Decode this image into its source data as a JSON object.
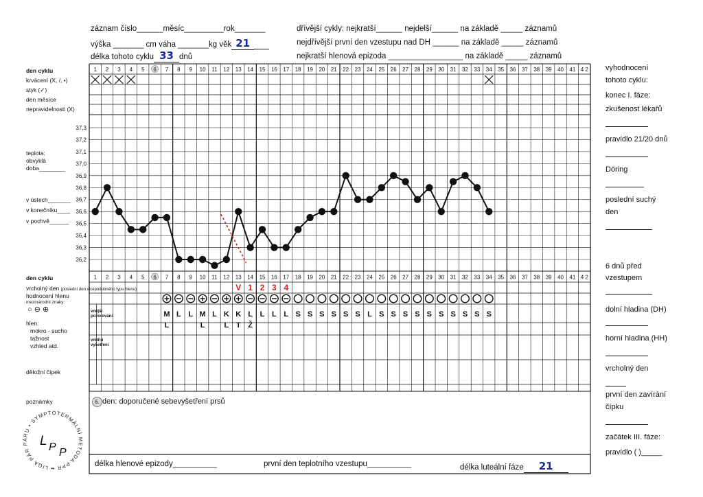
{
  "header": {
    "row1_left": "záznam číslo______měsíc_________rok_______",
    "row2_left_a": "výška _______ cm   váha _______kg   věk",
    "age": "21",
    "row3_left_a": "délka tohoto cyklu",
    "cycle_length": "33",
    "row3_left_b": "dnů",
    "row1_right": "dřívější cykly: nejkratší______ nejdelší______ na základě _____ záznamů",
    "row2_right": "nejdřívější první den vzestupu nad DH ______ na základě _____ záznamů",
    "row3_right": "nejkratší hlenová epizoda _________________ na základě _____ záznamů"
  },
  "left_labels": {
    "den_cyklu": "den cyklu",
    "krvaceni": "krvácení (X, /, •)",
    "styk": "styk (✓)",
    "den_mesice": "den měsíce",
    "nepravidelnosti": "nepravidelnosti (X)",
    "teplota": "teplota:",
    "obvykla": "obvyklá",
    "doba": "doba________",
    "v_ustech": "v ústech_______",
    "v_konecniku": "v konečníku____",
    "v_pochve": "v pochvě______",
    "den_cyklu2": "den cyklu",
    "vrcholny_den": "vrcholný den",
    "vrcholny_den_note": "(poslední den vícepodobného typu hlenu)",
    "hodnoceni": "hodnocení hlenu",
    "mezinarodni": "mezinárodní znaky:",
    "znaky": "○ ⊖ ⊕",
    "hlen": "hlen:",
    "mokro": "mokro - sucho",
    "taznost": "tažnost",
    "vzhled": "vzhled atd.",
    "delozni": "děložní čípek",
    "poznamky": "poznámky",
    "vnejsi": "vnější pozorování",
    "vnitrni": "vnitřní vyšetření"
  },
  "right_labels": {
    "vyhodnoceni": "vyhodnocení",
    "tohoto": "tohoto cyklu:",
    "konec": "konec I. fáze:",
    "zkusenost": "zkušenost lékařů",
    "pravidlo": "pravidlo 21/20 dnů",
    "doring": "Döring",
    "posledni": "poslední suchý",
    "den": "den",
    "sest": "6 dnů před",
    "vzestupem": "vzestupem",
    "dolni": "dolní hladina (DH)",
    "horni": "horní hladina (HH)",
    "vrcholny": "vrcholný den",
    "prvni_zavirani": "první den zavírání",
    "cipku": "čípku",
    "zacatek": "začátek III. fáze:",
    "pravidlo2": "pravidlo (  )_____"
  },
  "note": {
    "day": "6.",
    "text": "den: doporučené sebevyšetření prsů"
  },
  "footer": {
    "delka_hlenove": "délka hlenové epizody__________",
    "prvni_den": "první den teplotního vzestupu__________",
    "delka_luteralni": "délka luteální fáze",
    "luteal_value": "21"
  },
  "logo": {
    "ring_text": "• LIGA PÁR PÁRU • SYMPTOTERMÁLNÍ METODA PPR •",
    "mono": "LPP"
  },
  "colors": {
    "line": "#111111",
    "handwriting": "#1a2a9a",
    "red": "#d02020"
  },
  "chart_data": {
    "type": "line",
    "title": "",
    "x": [
      1,
      2,
      3,
      4,
      5,
      6,
      7,
      8,
      9,
      10,
      11,
      12,
      13,
      14,
      15,
      16,
      17,
      18,
      19,
      20,
      21,
      22,
      23,
      24,
      25,
      26,
      27,
      28,
      29,
      30,
      31,
      32,
      33,
      34
    ],
    "y": [
      36.6,
      36.8,
      36.6,
      36.45,
      36.45,
      36.55,
      36.55,
      36.2,
      36.2,
      36.2,
      36.15,
      36.2,
      36.6,
      36.3,
      36.45,
      36.3,
      36.3,
      36.45,
      36.55,
      36.6,
      36.6,
      36.9,
      36.7,
      36.7,
      36.8,
      36.9,
      36.85,
      36.7,
      36.8,
      36.6,
      36.85,
      36.9,
      36.8,
      36.6
    ],
    "ylim": [
      36.2,
      37.3
    ],
    "yticks": [
      "37,3",
      "37,2",
      "37,1",
      "37,0",
      "36,9",
      "36,8",
      "36,7",
      "36,6",
      "36,5",
      "36,4",
      "36,3",
      "36,2"
    ],
    "days": [
      "1",
      "2",
      "3",
      "4",
      "5",
      "6",
      "7",
      "8",
      "9",
      "10",
      "11",
      "12",
      "13",
      "14",
      "15",
      "16",
      "17",
      "18",
      "19",
      "20",
      "21",
      "22",
      "23",
      "24",
      "25",
      "26",
      "27",
      "28",
      "29",
      "30",
      "31",
      "32",
      "33",
      "34",
      "35",
      "36",
      "37",
      "38",
      "39",
      "40",
      "41",
      "4 2"
    ],
    "bleeding_days": [
      1,
      2,
      3,
      4,
      34
    ],
    "mucus_symbols": [
      "⊕",
      "⊖",
      "⊖",
      "⊕",
      "⊖",
      "⊕",
      "⊕",
      "⊖",
      "⊖",
      "⊖",
      "⊖",
      "○",
      "○",
      "○",
      "○",
      "○",
      "○",
      "○",
      "○",
      "○",
      "○",
      "○",
      "○",
      "○",
      "○",
      "○",
      "○",
      "○"
    ],
    "mucus_letters": [
      "M\nL",
      "L",
      "L",
      "M\nL",
      "L",
      "K\nL",
      "K\nT",
      "L\nŽ",
      "L",
      "L",
      "L",
      "S",
      "S",
      "S",
      "S",
      "S",
      "S",
      "L",
      "S",
      "S",
      "S",
      "S",
      "S",
      "S",
      "S",
      "S",
      "S",
      "S"
    ],
    "peak_marks": [
      "V",
      "1",
      "2",
      "3",
      "4"
    ]
  }
}
